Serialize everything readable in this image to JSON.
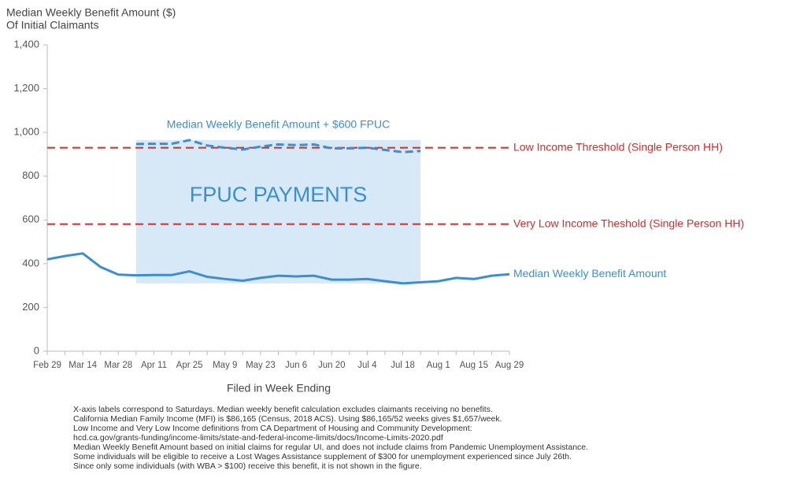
{
  "chart_data": {
    "type": "line",
    "title": "Median Weekly Benefit Amount ($)",
    "subtitle": "Of Initial Claimants",
    "x_label": "Filed in Week Ending",
    "categories": [
      "Feb 29",
      null,
      "Mar 14",
      null,
      "Mar 28",
      null,
      "Apr 11",
      null,
      "Apr 25",
      null,
      "May 9",
      null,
      "May 23",
      null,
      "Jun 6",
      null,
      "Jun 20",
      null,
      "Jul 4",
      null,
      "Jul 18",
      null,
      "Aug 1",
      null,
      "Aug 15",
      null,
      "Aug 29"
    ],
    "series": [
      {
        "name": "Median Weekly Benefit Amount",
        "color": "#3a8fd3",
        "dashed": false,
        "values": [
          420,
          435,
          447,
          385,
          350,
          347,
          348,
          348,
          365,
          340,
          330,
          322,
          335,
          345,
          342,
          345,
          327,
          327,
          330,
          320,
          310,
          315,
          320,
          335,
          330,
          345,
          352
        ]
      },
      {
        "name": "Median Weekly Benefit Amount + $600 FPUC",
        "color": "#3a8fd3",
        "dashed": true,
        "values": [
          null,
          null,
          null,
          null,
          null,
          947,
          948,
          948,
          965,
          940,
          930,
          922,
          935,
          945,
          942,
          945,
          927,
          927,
          930,
          920,
          910,
          915,
          null,
          null,
          null,
          null,
          null
        ]
      }
    ],
    "band_label": "FPUC PAYMENTS",
    "band_color": "#d7e9f6",
    "reference_lines": [
      {
        "label": "Low Income Threshold (Single Person HH)",
        "value": 930,
        "color": "#d62b2b"
      },
      {
        "label": "Very Low Income Theshold (Single Person HH)",
        "value": 581,
        "color": "#d62b2b"
      }
    ],
    "ylim": [
      0,
      1400
    ],
    "yticks": [
      0,
      200,
      400,
      600,
      800,
      {
        "value": 1000,
        "label": "1,000"
      },
      {
        "value": 1200,
        "label": "1,200"
      },
      {
        "value": 1400,
        "label": "1,400"
      }
    ],
    "notes": [
      "X-axis labels correspond to Saturdays. Median weekly benefit calculation excludes claimants receiving no benefits.",
      "California Median Family Income (MFI) is $86,165 (Census, 2018 ACS). Using $86,165/52 weeks gives $1,657/week.",
      "Low Income and Very Low Income definitions from CA Department of Housing and Community Development:",
      "hcd.ca.gov/grants-funding/income-limits/state-and-federal-income-limits/docs/Income-Limits-2020.pdf",
      "Median Weekly Benefit Amount based on initial claims for regular UI, and does not include claims from Pandemic Unemployment Assistance.",
      "Some individuals will be eligible to receive a Lost Wages Assistance supplement of $300 for unemployment experienced since July 26th.",
      "Since only some individuals (with WBA > $100) receive this benefit, it is not shown in the figure."
    ]
  }
}
